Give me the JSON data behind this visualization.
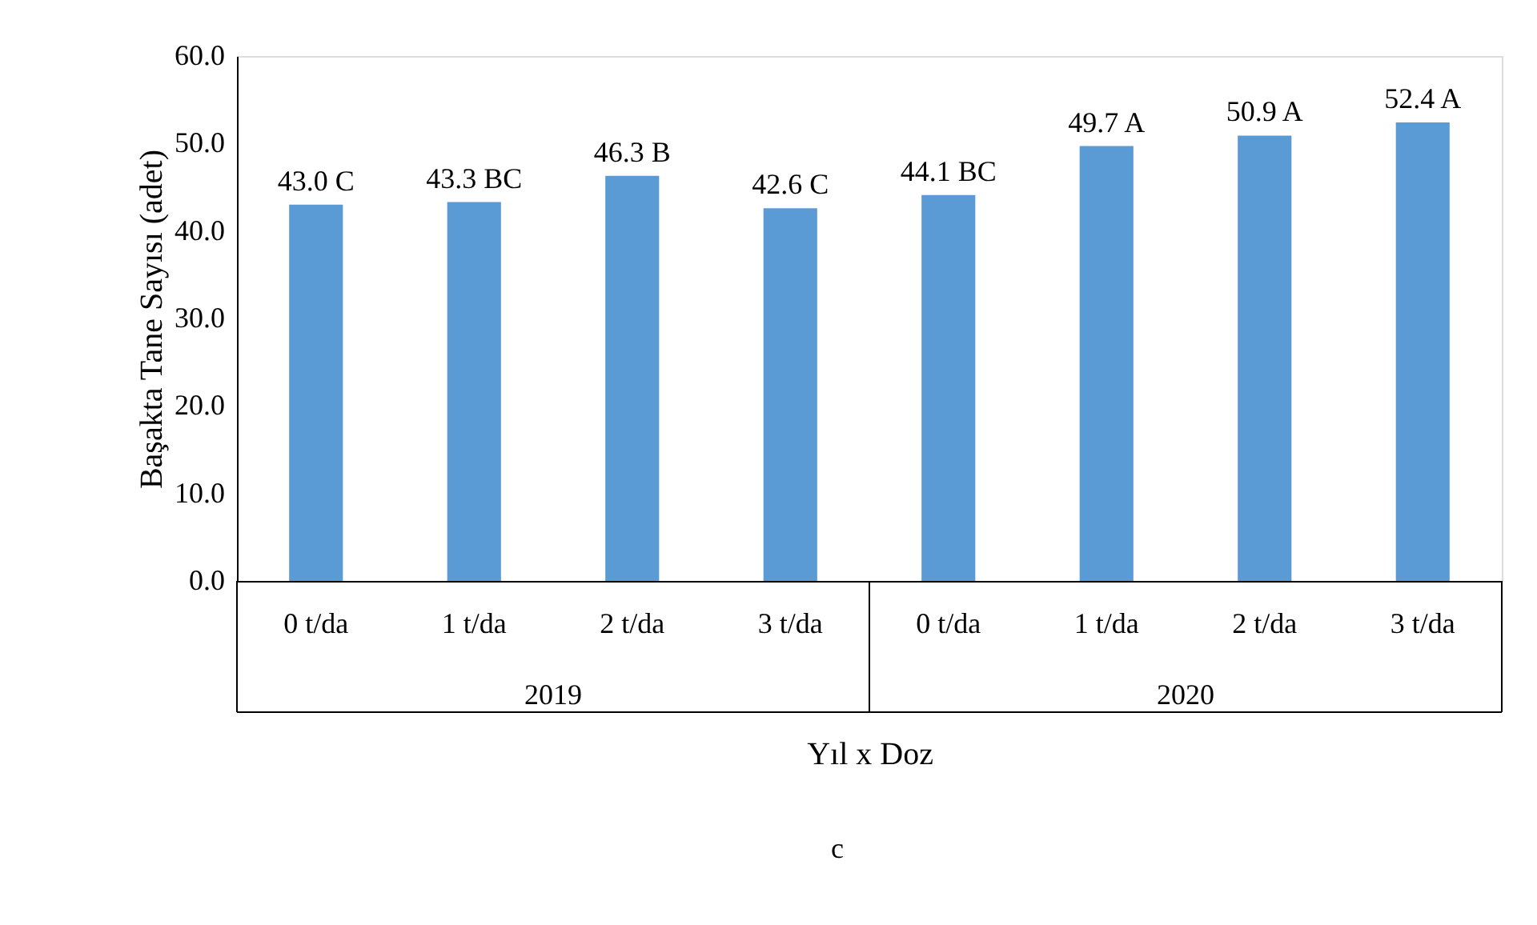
{
  "chart_data": {
    "type": "bar",
    "xlabel": "Yıl x Doz",
    "ylabel": "Başakta Tane Sayısı (adet)",
    "categories": [
      "0 t/da",
      "1 t/da",
      "2 t/da",
      "3 t/da",
      "0 t/da",
      "1 t/da",
      "2 t/da",
      "3 t/da"
    ],
    "values": [
      43.0,
      43.3,
      46.3,
      42.6,
      44.1,
      49.7,
      50.9,
      52.4
    ],
    "value_labels": [
      "43.0 C",
      "43.3 BC",
      "46.3 B",
      "42.6 C",
      "44.1 BC",
      "49.7 A",
      "50.9 A",
      "52.4 A"
    ],
    "color": "#5b9bd5",
    "ylim": [
      0,
      60
    ],
    "yticks": [
      {
        "value": 0,
        "label": "0.0"
      },
      {
        "value": 10,
        "label": "10.0"
      },
      {
        "value": 20,
        "label": "20.0"
      },
      {
        "value": 30,
        "label": "30.0"
      },
      {
        "value": 40,
        "label": "40.0"
      },
      {
        "value": 50,
        "label": "50.0"
      },
      {
        "value": 60,
        "label": "60.0"
      }
    ],
    "grid": false,
    "annotations": [
      "2019",
      "2020",
      "c"
    ]
  }
}
